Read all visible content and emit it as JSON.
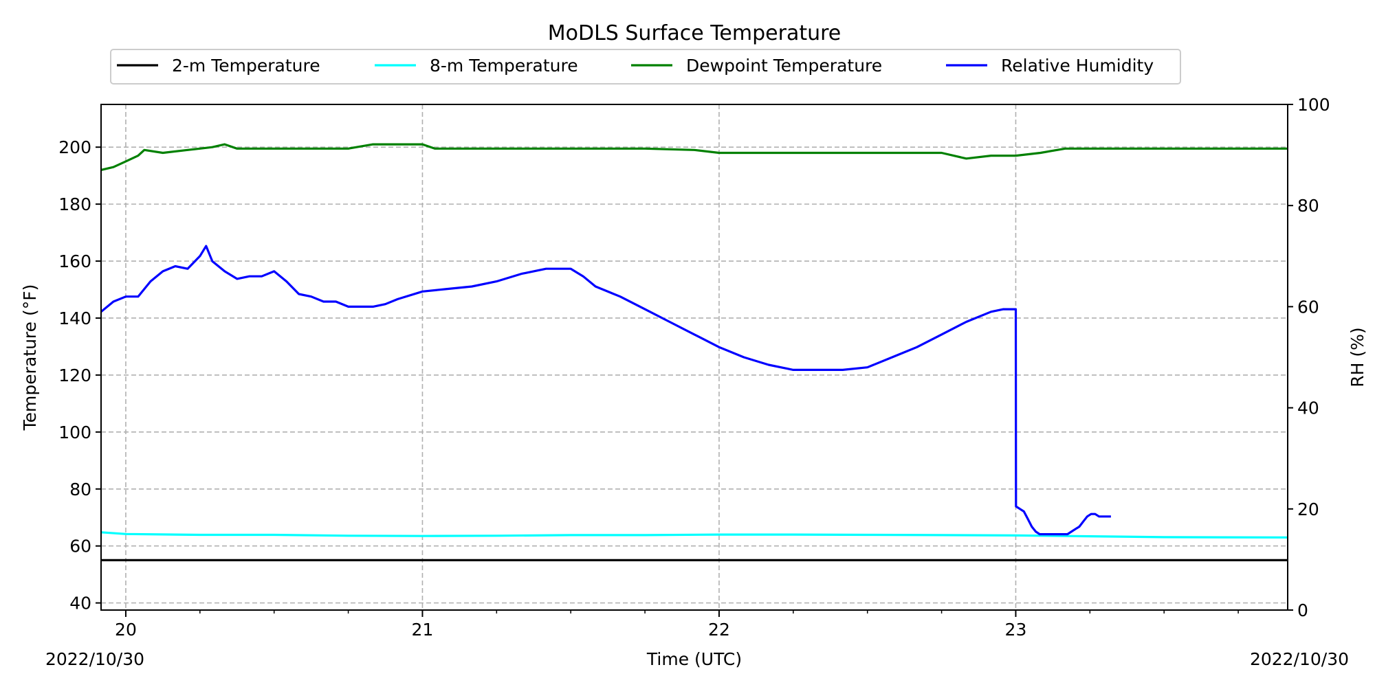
{
  "chart_data": {
    "type": "line",
    "title": "MoDLS Surface Temperature",
    "xlabel": "Time (UTC)",
    "ylabel": "Temperature ($^\\circ$F)",
    "ylabel_display": "Temperature (°F)",
    "y2label": "RH (%)",
    "x_unit": "hour (UTC)",
    "x_origin_label": "2022/10/30 00:00 UTC",
    "xlim": [
      -2,
      94
    ],
    "ylim": [
      37.5,
      215
    ],
    "y2lim": [
      0,
      100
    ],
    "x_ticks": [
      0,
      24,
      48,
      72
    ],
    "x_tick_labels": [
      "20",
      "21",
      "22",
      "23"
    ],
    "x_minor_step": 6,
    "y_ticks": [
      40,
      60,
      80,
      100,
      120,
      140,
      160,
      180,
      200
    ],
    "y2_ticks": [
      0,
      20,
      40,
      60,
      80,
      100
    ],
    "x_corner_labels": {
      "left": "2022/10/30",
      "right": "2022/10/30"
    },
    "grid": true,
    "legend_position": "top-center",
    "series": [
      {
        "name": "2-m Temperature",
        "axis": "left",
        "color": "#000000",
        "points": [
          [
            -2,
            55.0
          ],
          [
            94,
            55.0
          ]
        ]
      },
      {
        "name": "8-m Temperature",
        "axis": "left",
        "color": "#00ffff",
        "points": [
          [
            -2,
            64.8
          ],
          [
            0,
            64.2
          ],
          [
            6,
            63.9
          ],
          [
            12,
            63.9
          ],
          [
            18,
            63.6
          ],
          [
            24,
            63.5
          ],
          [
            30,
            63.6
          ],
          [
            36,
            63.8
          ],
          [
            42,
            63.8
          ],
          [
            48,
            64.0
          ],
          [
            54,
            64.0
          ],
          [
            60,
            63.9
          ],
          [
            66,
            63.8
          ],
          [
            72,
            63.7
          ],
          [
            78,
            63.4
          ],
          [
            84,
            63.1
          ],
          [
            94,
            63.0
          ]
        ]
      },
      {
        "name": "Dewpoint Temperature",
        "axis": "left",
        "color": "#008000",
        "points": [
          [
            -2,
            192
          ],
          [
            -1,
            193
          ],
          [
            0,
            195
          ],
          [
            1,
            197
          ],
          [
            1.5,
            199
          ],
          [
            3,
            198
          ],
          [
            5,
            199
          ],
          [
            6,
            199.5
          ],
          [
            7,
            200
          ],
          [
            8,
            201
          ],
          [
            9,
            199.5
          ],
          [
            12,
            199.5
          ],
          [
            18,
            199.5
          ],
          [
            20,
            201
          ],
          [
            22,
            201
          ],
          [
            24,
            201
          ],
          [
            25,
            199.5
          ],
          [
            30,
            199.5
          ],
          [
            36,
            199.5
          ],
          [
            42,
            199.5
          ],
          [
            46,
            199
          ],
          [
            48,
            198
          ],
          [
            54,
            198
          ],
          [
            60,
            198
          ],
          [
            66,
            198
          ],
          [
            68,
            196
          ],
          [
            70,
            197
          ],
          [
            72,
            197
          ],
          [
            74,
            198
          ],
          [
            76,
            199.5
          ],
          [
            80,
            199.5
          ],
          [
            86,
            199.5
          ],
          [
            94,
            199.5
          ]
        ]
      },
      {
        "name": "Relative Humidity",
        "axis": "right",
        "color": "#0000ff",
        "points": [
          [
            -2,
            59
          ],
          [
            -1,
            61
          ],
          [
            0,
            62
          ],
          [
            1,
            62
          ],
          [
            2,
            65
          ],
          [
            3,
            67
          ],
          [
            4,
            68
          ],
          [
            5,
            67.5
          ],
          [
            6,
            70
          ],
          [
            6.5,
            72
          ],
          [
            7,
            69
          ],
          [
            8,
            67
          ],
          [
            9,
            65.5
          ],
          [
            10,
            66
          ],
          [
            11,
            66
          ],
          [
            12,
            67
          ],
          [
            13,
            65
          ],
          [
            14,
            62.5
          ],
          [
            15,
            62
          ],
          [
            16,
            61
          ],
          [
            17,
            61
          ],
          [
            18,
            60
          ],
          [
            19,
            60
          ],
          [
            20,
            60
          ],
          [
            21,
            60.5
          ],
          [
            22,
            61.5
          ],
          [
            24,
            63
          ],
          [
            26,
            63.5
          ],
          [
            28,
            64
          ],
          [
            30,
            65
          ],
          [
            32,
            66.5
          ],
          [
            34,
            67.5
          ],
          [
            36,
            67.5
          ],
          [
            37,
            66
          ],
          [
            38,
            64
          ],
          [
            40,
            62
          ],
          [
            42,
            59.5
          ],
          [
            44,
            57
          ],
          [
            46,
            54.5
          ],
          [
            48,
            52
          ],
          [
            50,
            50
          ],
          [
            52,
            48.5
          ],
          [
            54,
            47.5
          ],
          [
            56,
            47.5
          ],
          [
            58,
            47.5
          ],
          [
            60,
            48
          ],
          [
            62,
            50
          ],
          [
            64,
            52
          ],
          [
            66,
            54.5
          ],
          [
            68,
            57
          ],
          [
            70,
            59
          ],
          [
            71,
            59.5
          ],
          [
            72,
            59.5
          ]
        ],
        "points_after_drop": [
          [
            72,
            20.5
          ],
          [
            74,
            20
          ],
          [
            76,
            19.5
          ],
          [
            78,
            18
          ],
          [
            80,
            16.5
          ],
          [
            82,
            15.5
          ],
          [
            84,
            15
          ],
          [
            86,
            15
          ],
          [
            88,
            15
          ],
          [
            90,
            15
          ],
          [
            92,
            15
          ],
          [
            94,
            15
          ],
          [
            96,
            15
          ],
          [
            98,
            15
          ],
          [
            100,
            15.5
          ],
          [
            102,
            16
          ],
          [
            104,
            16.5
          ],
          [
            106,
            17.5
          ],
          [
            108,
            18.5
          ],
          [
            110,
            19
          ],
          [
            112,
            19
          ],
          [
            114,
            18.5
          ],
          [
            116,
            18.5
          ],
          [
            118,
            18.5
          ],
          [
            120,
            18.5
          ]
        ]
      }
    ]
  }
}
